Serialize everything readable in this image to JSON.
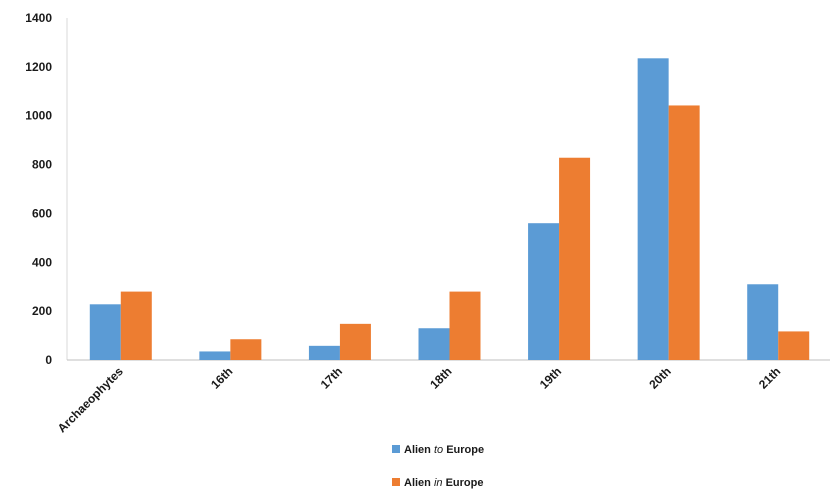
{
  "chart_data": {
    "type": "bar",
    "title": "",
    "xlabel": "",
    "ylabel": "",
    "ylim": [
      0,
      1400
    ],
    "yticks": [
      0,
      200,
      400,
      600,
      800,
      1000,
      1200,
      1400
    ],
    "grid": false,
    "legend_position": "bottom",
    "categories": [
      "Archaeophytes",
      "16th",
      "17th",
      "18th",
      "19th",
      "20th",
      "21th"
    ],
    "series": [
      {
        "name": "Alien to Europe",
        "name_prefix": "Alien ",
        "name_emphasis": "to",
        "name_suffix": " Europe",
        "color": "#5B9BD5",
        "values": [
          228,
          35,
          58,
          130,
          560,
          1235,
          310
        ]
      },
      {
        "name": "Alien in Europe",
        "name_prefix": "Alien ",
        "name_emphasis": "in",
        "name_suffix": " Europe",
        "color": "#ED7D31",
        "values": [
          280,
          85,
          148,
          280,
          828,
          1042,
          117
        ]
      }
    ]
  }
}
